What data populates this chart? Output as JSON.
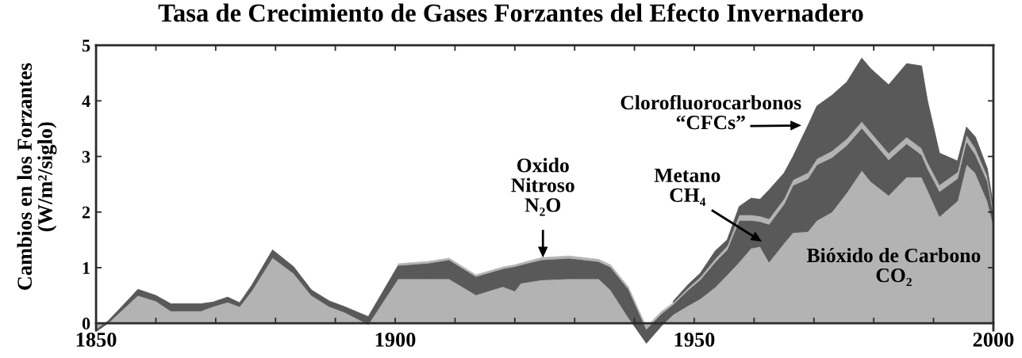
{
  "chart_data": {
    "type": "area",
    "title": "Tasa de Crecimiento de Gases Forzantes del Efecto Invernadero",
    "ylabel": "Cambios en los Forzantes\n(W/m²/siglo)",
    "stacked": true,
    "legend": false,
    "grid": false,
    "x": [
      1850,
      1852,
      1855,
      1857,
      1860,
      1862.5,
      1867.5,
      1869.5,
      1872,
      1874,
      1876,
      1879.5,
      1883,
      1886,
      1889,
      1891.5,
      1895.5,
      1900.5,
      1905.5,
      1909,
      1913.5,
      1918,
      1920,
      1921,
      1924.5,
      1929,
      1934,
      1936,
      1939,
      1942,
      1944.5,
      1946.5,
      1949,
      1951,
      1953.5,
      1955.5,
      1957.5,
      1959.5,
      1961,
      1962.5,
      1965,
      1966.5,
      1969,
      1970.5,
      1973,
      1975.5,
      1978,
      1979.5,
      1982.5,
      1985.5,
      1988,
      1989,
      1991,
      1994,
      1995.5,
      1997,
      1999,
      2000
    ],
    "series": [
      {
        "name": "Bióxido de Carbono\nCO₂",
        "color": "#b3b3b3",
        "values": [
          -0.15,
          0.0,
          0.3,
          0.5,
          0.4,
          0.22,
          0.22,
          0.3,
          0.38,
          0.3,
          0.58,
          1.18,
          0.9,
          0.5,
          0.3,
          0.2,
          -0.02,
          0.8,
          0.8,
          0.8,
          0.51,
          0.66,
          0.58,
          0.72,
          0.78,
          0.8,
          0.8,
          0.6,
          0.1,
          -0.36,
          -0.05,
          0.16,
          0.32,
          0.44,
          0.65,
          0.87,
          1.1,
          1.35,
          1.38,
          1.1,
          1.44,
          1.63,
          1.65,
          1.85,
          2.0,
          2.35,
          2.75,
          2.55,
          2.3,
          2.63,
          2.63,
          2.4,
          1.92,
          2.2,
          2.86,
          2.7,
          2.2,
          1.77
        ]
      },
      {
        "name": "Metano\nCH₄",
        "color": "#595959",
        "values": [
          0.03,
          0.04,
          0.08,
          0.11,
          0.1,
          0.13,
          0.13,
          0.08,
          0.09,
          0.07,
          0.1,
          0.14,
          0.12,
          0.1,
          0.1,
          0.1,
          0.14,
          0.24,
          0.28,
          0.34,
          0.33,
          0.32,
          0.44,
          0.33,
          0.36,
          0.37,
          0.31,
          0.41,
          0.51,
          0.25,
          0.22,
          0.18,
          0.28,
          0.34,
          0.45,
          0.45,
          0.75,
          0.5,
          0.45,
          0.68,
          0.7,
          0.85,
          0.95,
          1.0,
          0.98,
          0.85,
          0.76,
          0.77,
          0.64,
          0.6,
          0.4,
          0.38,
          0.45,
          0.4,
          0.41,
          0.33,
          0.35,
          0.2
        ]
      },
      {
        "name": "Oxido\nNitroso\nN₂O",
        "color": "#b3b3b3",
        "values": [
          null,
          null,
          null,
          null,
          null,
          null,
          null,
          null,
          null,
          null,
          null,
          null,
          null,
          null,
          null,
          null,
          null,
          0.03,
          0.03,
          0.03,
          0.03,
          0.03,
          0.03,
          0.03,
          0.04,
          0.04,
          0.04,
          0.04,
          0.04,
          0.04,
          0.04,
          0.03,
          0.04,
          0.05,
          0.06,
          0.07,
          0.1,
          0.1,
          0.1,
          0.1,
          0.1,
          0.1,
          0.11,
          0.11,
          0.12,
          0.12,
          0.12,
          0.12,
          0.12,
          0.12,
          0.12,
          0.12,
          0.12,
          0.12,
          0.12,
          0.12,
          0.1,
          0.08
        ]
      },
      {
        "name": "Clorofluorocarbonos\n“CFCs”",
        "color": "#595959",
        "values": [
          null,
          null,
          null,
          null,
          null,
          null,
          null,
          null,
          null,
          null,
          null,
          null,
          null,
          null,
          null,
          null,
          null,
          null,
          null,
          null,
          null,
          null,
          null,
          null,
          null,
          null,
          null,
          null,
          null,
          null,
          null,
          0.03,
          0.06,
          0.07,
          0.14,
          0.11,
          0.15,
          0.3,
          0.3,
          0.52,
          0.46,
          0.42,
          0.85,
          0.95,
          1.0,
          1.02,
          1.14,
          1.14,
          1.23,
          1.32,
          1.48,
          1.1,
          0.57,
          0.2,
          0.14,
          0.2,
          0.13,
          0.05
        ]
      }
    ],
    "xlim": [
      1850,
      2000
    ],
    "xticks": [
      1850,
      {
        "value": 1860,
        "label": null
      },
      {
        "value": 1870,
        "label": null
      },
      {
        "value": 1880,
        "label": null
      },
      {
        "value": 1890,
        "label": null
      },
      1900,
      {
        "value": 1910,
        "label": null
      },
      {
        "value": 1920,
        "label": null
      },
      {
        "value": 1930,
        "label": null
      },
      {
        "value": 1940,
        "label": null
      },
      1950,
      {
        "value": 1960,
        "label": null
      },
      {
        "value": 1970,
        "label": null
      },
      {
        "value": 1980,
        "label": null
      },
      {
        "value": 1990,
        "label": null
      },
      2000
    ],
    "ylim": [
      -0.4,
      5
    ],
    "yticks": [
      0,
      1,
      2,
      3,
      4,
      5
    ]
  }
}
